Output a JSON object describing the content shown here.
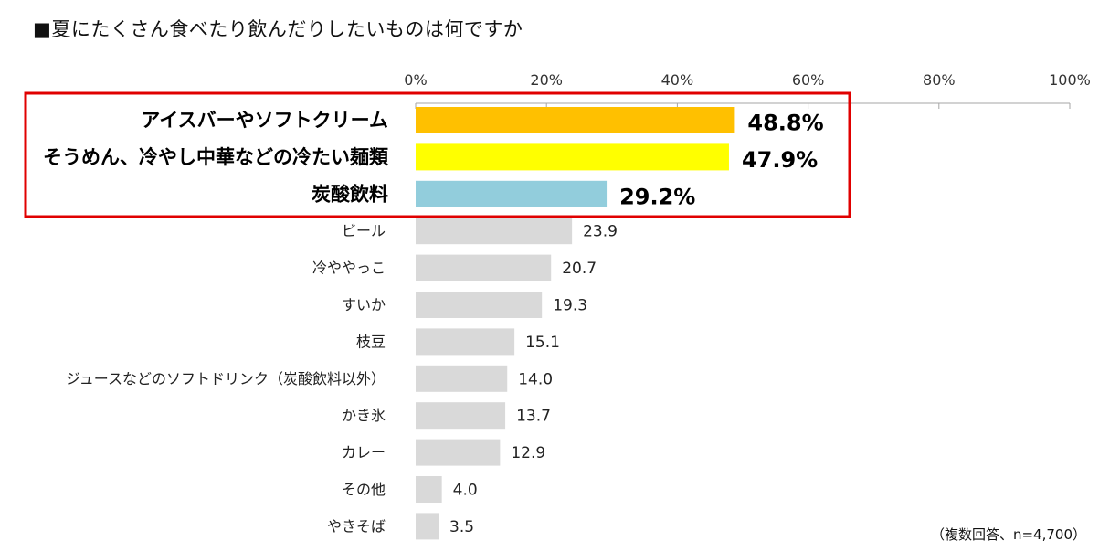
{
  "chart_data": {
    "type": "bar",
    "orientation": "horizontal",
    "title": "■夏にたくさん食べたり飲んだりしたいものは何ですか",
    "note": "（複数回答、n=4,700）",
    "xlim": [
      0,
      100
    ],
    "xticks": [
      "0%",
      "20%",
      "40%",
      "60%",
      "80%",
      "100%"
    ],
    "categories": [
      "アイスバーやソフトクリーム",
      "そうめん、冷やし中華などの冷たい麺類",
      "炭酸飲料",
      "ビール",
      "冷ややっこ",
      "すいか",
      "枝豆",
      "ジュースなどのソフトドリンク（炭酸飲料以外）",
      "かき氷",
      "カレー",
      "その他",
      "やきそば"
    ],
    "values": [
      48.8,
      47.9,
      29.2,
      23.9,
      20.7,
      19.3,
      15.1,
      14.0,
      13.7,
      12.9,
      4.0,
      3.5
    ],
    "value_labels": [
      "48.8%",
      "47.9%",
      "29.2%",
      "23.9",
      "20.7",
      "19.3",
      "15.1",
      "14.0",
      "13.7",
      "12.9",
      "4.0",
      "3.5"
    ],
    "highlighted": [
      true,
      true,
      true,
      false,
      false,
      false,
      false,
      false,
      false,
      false,
      false,
      false
    ],
    "colors": [
      "#FFC000",
      "#FFFF00",
      "#92CDDC",
      "#D9D9D9",
      "#D9D9D9",
      "#D9D9D9",
      "#D9D9D9",
      "#D9D9D9",
      "#D9D9D9",
      "#D9D9D9",
      "#D9D9D9",
      "#D9D9D9"
    ],
    "highlight_box_color": "#E00000",
    "axis_color": "#A6A6A6"
  }
}
